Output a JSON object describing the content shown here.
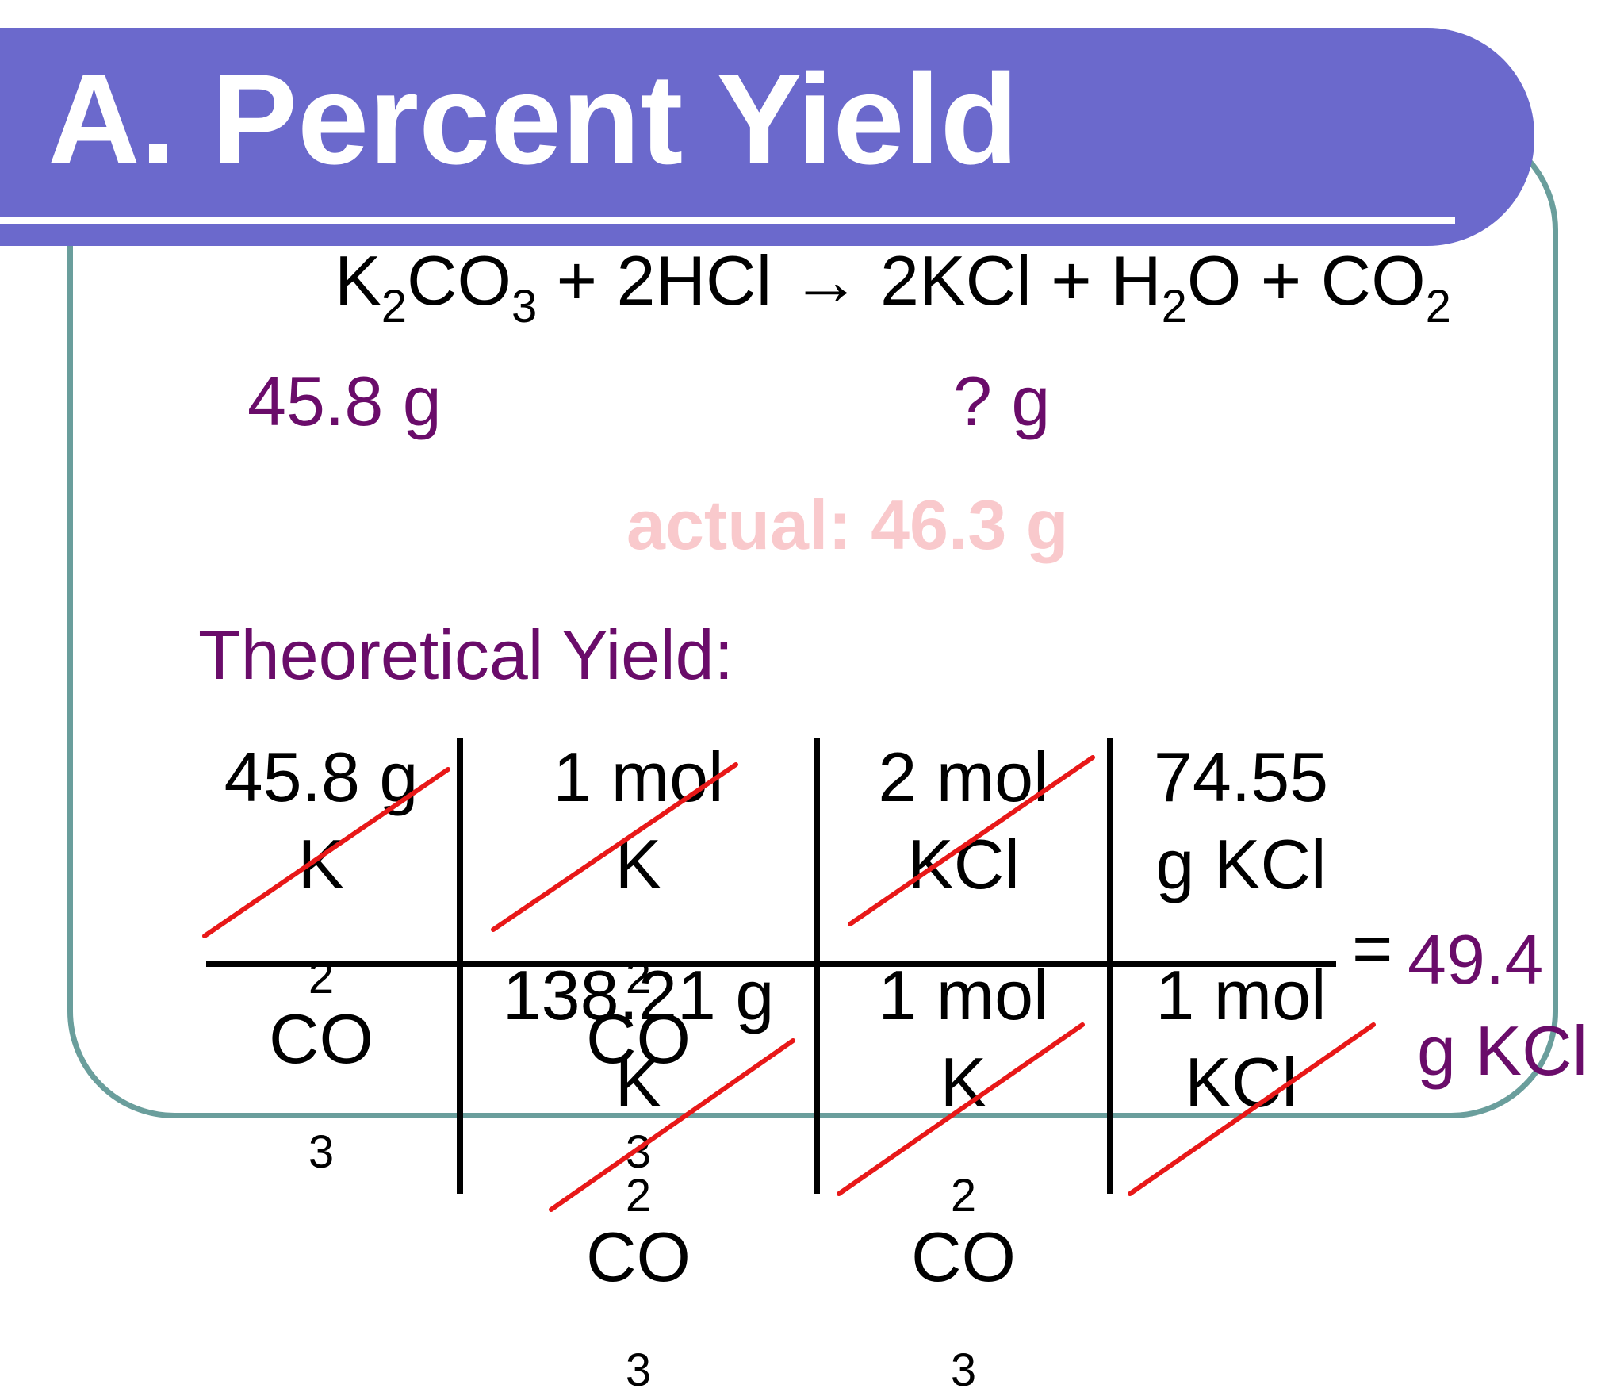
{
  "title": "A. Percent Yield",
  "equation": {
    "reactant1": {
      "a": "K",
      "sub1": "2",
      "b": "CO",
      "sub2": "3"
    },
    "plus1": " + ",
    "reactant2": "2HCl",
    "arrow": " → ",
    "product1": "2KCl",
    "plus2": " + ",
    "product2": {
      "a": "H",
      "sub1": "2",
      "b": "O"
    },
    "plus3": " + ",
    "product3": {
      "a": "CO",
      "sub1": "2"
    }
  },
  "given_mass": "45.8 g",
  "unknown_mass": "? g",
  "actual_yield": "actual: 46.3 g",
  "theoretical_label": "Theoretical Yield:",
  "calculation": {
    "numerators": [
      {
        "line1": "45.8 g",
        "line2": {
          "a": "K",
          "sub1": "2",
          "b": "CO",
          "sub2": "3"
        }
      },
      {
        "line1": "1 mol",
        "line2": {
          "a": "K",
          "sub1": "2",
          "b": "CO",
          "sub2": "3"
        }
      },
      {
        "line1": "2 mol",
        "line2": "KCl"
      },
      {
        "line1": "74.55",
        "line2": "g KCl"
      }
    ],
    "denominators": [
      {
        "line1": "138.21 g",
        "line2": {
          "a": "K",
          "sub1": "2",
          "b": "CO",
          "sub2": "3"
        }
      },
      {
        "line1": "1 mol",
        "line2": {
          "a": "K",
          "sub1": "2",
          "b": "CO",
          "sub2": "3"
        }
      },
      {
        "line1": "1 mol",
        "line2": "KCl"
      }
    ],
    "equals": "=",
    "result_value": "49.4",
    "result_unit": "g KCl"
  },
  "colors": {
    "title_bar": "#6b69cc",
    "frame": "#6a9e9c",
    "purple_text": "#6a0c6a",
    "actual_text": "#f9c9cc",
    "cancel_line": "#e81818"
  }
}
